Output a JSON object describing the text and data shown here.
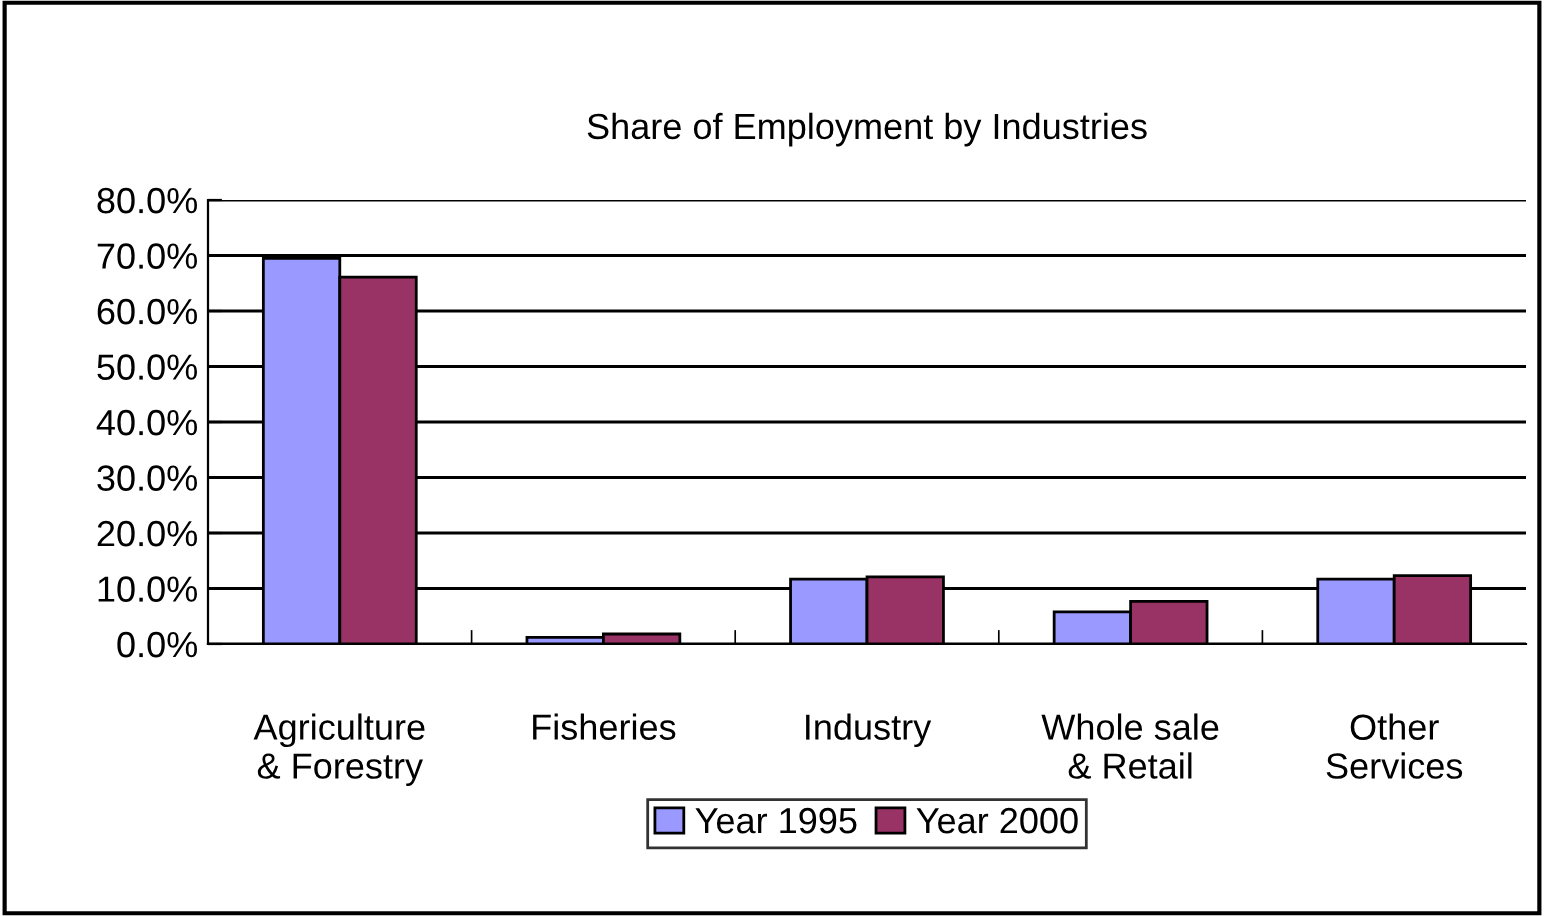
{
  "chart_data": {
    "type": "bar",
    "title": "Share of Employment by Industries",
    "categories": [
      "Agriculture\n& Forestry",
      "Fisheries",
      "Industry",
      "Whole sale\n& Retail",
      "Other\nServices"
    ],
    "series": [
      {
        "name": "Year 1995",
        "color": "#9999ff",
        "values": [
          69.5,
          1.2,
          11.7,
          5.8,
          11.7
        ]
      },
      {
        "name": "Year 2000",
        "color": "#993366",
        "values": [
          66.1,
          1.8,
          12.1,
          7.7,
          12.3
        ]
      }
    ],
    "ylim": [
      0,
      80
    ],
    "yticks": [
      {
        "value": 0,
        "label": "0.0%"
      },
      {
        "value": 10,
        "label": "10.0%"
      },
      {
        "value": 20,
        "label": "20.0%"
      },
      {
        "value": 30,
        "label": "30.0%"
      },
      {
        "value": 40,
        "label": "40.0%"
      },
      {
        "value": 50,
        "label": "50.0%"
      },
      {
        "value": 60,
        "label": "60.0%"
      },
      {
        "value": 70,
        "label": "70.0%"
      },
      {
        "value": 80,
        "label": "80.0%"
      }
    ],
    "grid": "y",
    "legend": "bottom"
  }
}
